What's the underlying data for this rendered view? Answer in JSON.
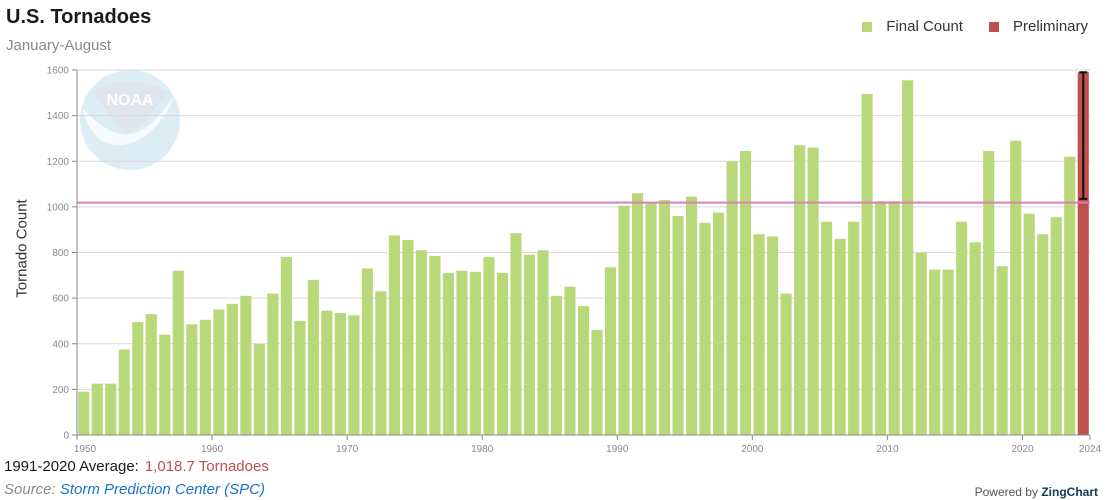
{
  "header": {
    "title": "U.S. Tornadoes",
    "subtitle": "January-August"
  },
  "legend": {
    "items": [
      {
        "label": "Final Count",
        "color": "#b8d97a"
      },
      {
        "label": "Preliminary",
        "color": "#c0504d"
      }
    ]
  },
  "footer": {
    "average_label": "1991-2020 Average:",
    "average_value": "1,018.7 Tornadoes",
    "source_label": "Source:",
    "source_link": "Storm Prediction Center (SPC)",
    "powered_by": "Powered by",
    "powered_brand": "ZingChart"
  },
  "watermark": {
    "icon": "noaa-logo-icon",
    "text": "NOAA"
  },
  "colors": {
    "final": "#b8d97a",
    "preliminary": "#c0504d",
    "average_line": "#de7fb4",
    "grid": "#d9d9d9",
    "axis": "#888888"
  },
  "chart_data": {
    "type": "bar",
    "title": "U.S. Tornadoes",
    "subtitle": "January-August",
    "xlabel": "",
    "ylabel": "Tornado Count",
    "ylim": [
      0,
      1600
    ],
    "yticks": [
      0,
      200,
      400,
      600,
      800,
      1000,
      1200,
      1400,
      1600
    ],
    "xticks": [
      1950,
      1960,
      1970,
      1980,
      1990,
      2000,
      2010,
      2020,
      2024
    ],
    "grid": true,
    "legend_position": "top-right",
    "reference_line": {
      "label": "1991-2020 Average",
      "value": 1018.7
    },
    "categories": [
      1950,
      1951,
      1952,
      1953,
      1954,
      1955,
      1956,
      1957,
      1958,
      1959,
      1960,
      1961,
      1962,
      1963,
      1964,
      1965,
      1966,
      1967,
      1968,
      1969,
      1970,
      1971,
      1972,
      1973,
      1974,
      1975,
      1976,
      1977,
      1978,
      1979,
      1980,
      1981,
      1982,
      1983,
      1984,
      1985,
      1986,
      1987,
      1988,
      1989,
      1990,
      1991,
      1992,
      1993,
      1994,
      1995,
      1996,
      1997,
      1998,
      1999,
      2000,
      2001,
      2002,
      2003,
      2004,
      2005,
      2006,
      2007,
      2008,
      2009,
      2010,
      2011,
      2012,
      2013,
      2014,
      2015,
      2016,
      2017,
      2018,
      2019,
      2020,
      2021,
      2022,
      2023,
      2024
    ],
    "series": [
      {
        "name": "Final Count",
        "values": [
          190,
          225,
          225,
          375,
          495,
          530,
          440,
          720,
          485,
          505,
          550,
          575,
          610,
          400,
          620,
          780,
          500,
          680,
          545,
          535,
          525,
          730,
          630,
          875,
          855,
          810,
          785,
          710,
          720,
          715,
          780,
          710,
          885,
          790,
          810,
          610,
          650,
          565,
          460,
          735,
          1005,
          1060,
          1015,
          1030,
          960,
          1045,
          930,
          975,
          1200,
          1245,
          880,
          870,
          620,
          1270,
          1260,
          935,
          860,
          935,
          1495,
          1025,
          1025,
          1555,
          800,
          725,
          725,
          935,
          845,
          1245,
          740,
          1290,
          970,
          880,
          955,
          1220,
          null
        ]
      },
      {
        "name": "Preliminary",
        "values": [
          null,
          null,
          null,
          null,
          null,
          null,
          null,
          null,
          null,
          null,
          null,
          null,
          null,
          null,
          null,
          null,
          null,
          null,
          null,
          null,
          null,
          null,
          null,
          null,
          null,
          null,
          null,
          null,
          null,
          null,
          null,
          null,
          null,
          null,
          null,
          null,
          null,
          null,
          null,
          null,
          null,
          null,
          null,
          null,
          null,
          null,
          null,
          null,
          null,
          null,
          null,
          null,
          null,
          null,
          null,
          null,
          null,
          null,
          null,
          null,
          null,
          null,
          null,
          null,
          null,
          null,
          null,
          null,
          null,
          null,
          null,
          null,
          null,
          null,
          1590
        ],
        "error_bar": {
          "year": 2024,
          "low": 1035,
          "high": 1590
        }
      }
    ]
  }
}
